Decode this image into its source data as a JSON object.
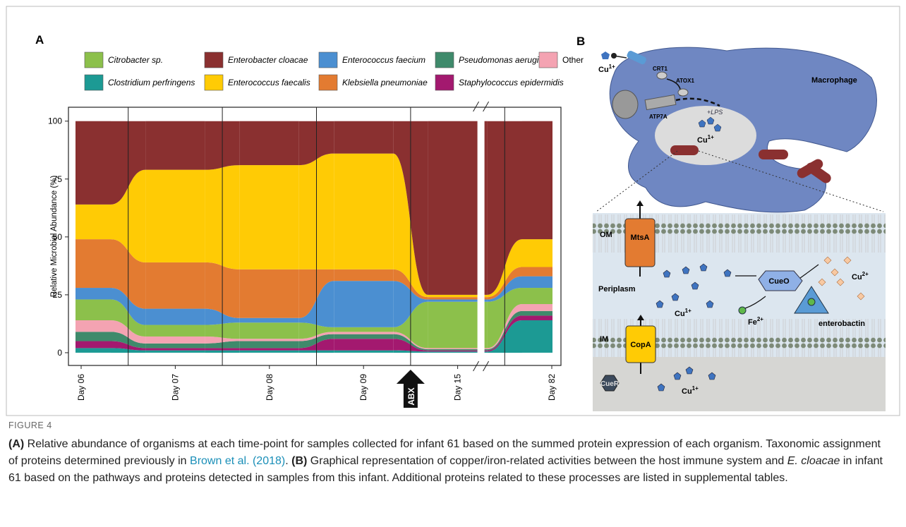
{
  "chart_data": {
    "type": "alluvial",
    "panel_label": "A",
    "y_label": "Relative Microbial Abundance (%)",
    "categories": [
      "Day 06",
      "Day 07",
      "Day 08",
      "Day 09",
      "Day 15",
      "Day 82"
    ],
    "series": [
      {
        "name": "Clostridium perfringens",
        "color": "#1c9a94",
        "values": [
          2,
          1,
          1,
          1,
          0.5,
          14
        ]
      },
      {
        "name": "Staphylococcus epidermidis",
        "color": "#a3196f",
        "values": [
          3,
          1,
          1,
          5,
          0.5,
          2
        ]
      },
      {
        "name": "Pseudomonas aeruginosa",
        "color": "#3f8a6b",
        "values": [
          4,
          2,
          3,
          2,
          0.5,
          2
        ]
      },
      {
        "name": "Other",
        "color": "#f4a3b2",
        "values": [
          5,
          3,
          1,
          1,
          0.5,
          3
        ]
      },
      {
        "name": "Citrobacter sp.",
        "color": "#8cc04b",
        "values": [
          9,
          5,
          7,
          2,
          20,
          7
        ]
      },
      {
        "name": "Enterococcus faecium",
        "color": "#4b8fd1",
        "values": [
          5,
          7,
          2,
          20,
          1,
          5
        ]
      },
      {
        "name": "Klebsiella pneumoniae",
        "color": "#e37b31",
        "values": [
          21,
          20,
          21,
          5,
          1,
          4
        ]
      },
      {
        "name": "Enterococcus faecalis",
        "color": "#ffcb05",
        "values": [
          15,
          40,
          45,
          50,
          1,
          12
        ]
      },
      {
        "name": "Enterobacter cloacae",
        "color": "#8a3030",
        "values": [
          36,
          21,
          19,
          14,
          75,
          51
        ]
      }
    ],
    "ylim": [
      -5.5,
      106
    ],
    "yticks": [
      0,
      25,
      50,
      75,
      100
    ],
    "annotation": "ABX"
  },
  "panel_b": {
    "panel_label": "B",
    "macrophage": "Macrophage",
    "cu_top": {
      "text": "Cu",
      "sup": "1+"
    },
    "crt1": "CRT1",
    "atox1": "ATOX1",
    "atp7a": "ATP7A",
    "lps": "+LPS",
    "cu_vacuole": {
      "text": "Cu",
      "sup": "1+"
    },
    "om": "OM",
    "mtsa": "MtsA",
    "periplasm": "Periplasm",
    "cueo": "CueO",
    "cu_periplasm2": {
      "text": "Cu",
      "sup": "2+"
    },
    "cu_periplasm1": {
      "text": "Cu",
      "sup": "1+"
    },
    "fe": {
      "text": "Fe",
      "sup": "2+"
    },
    "enterobactin": "enterobactin",
    "im": "IM",
    "copa": "CopA",
    "cuer": "CueR",
    "cu_cytoplasm": {
      "text": "Cu",
      "sup": "1+"
    }
  },
  "caption": {
    "label": "FIGURE 4",
    "a_label": "(A)",
    "a_text": "Relative abundance of organisms at each time-point for samples collected for infant 61 based on the summed protein expression of each organism. Taxonomic assignment of proteins determined previously in",
    "citation": "Brown et al. (2018)",
    "a_end": ".",
    "b_label": "(B)",
    "b_text1": "Graphical representation of copper/iron-related activities between the host immune system and",
    "b_italic": "E. cloacae",
    "b_text2": "in infant 61 based on the pathways and proteins detected in samples from this infant. Additional proteins related to these processes are listed in supplemental tables."
  }
}
